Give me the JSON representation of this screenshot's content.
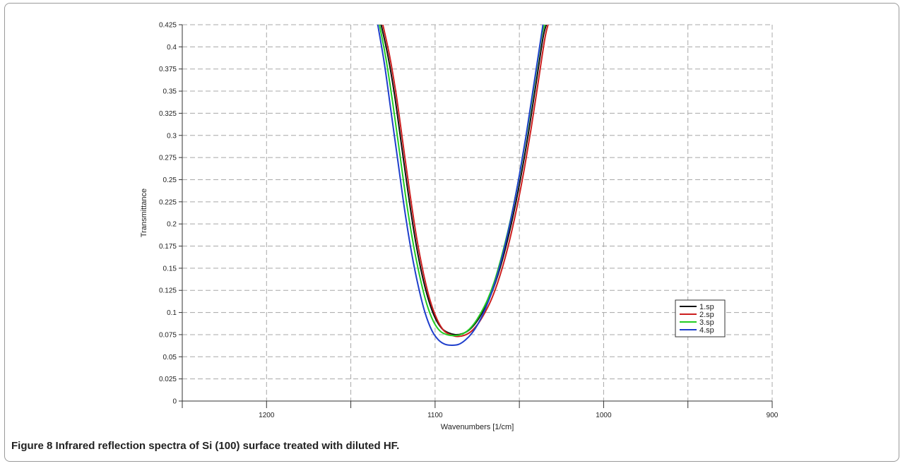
{
  "caption": {
    "label": "Figure 8",
    "text": "Infrared reflection spectra of Si (100) surface treated with diluted HF."
  },
  "chart_data": {
    "type": "line",
    "xlabel": "Wavenumbers [1/cm]",
    "ylabel": "Transmittance",
    "xlim": [
      1250,
      900
    ],
    "ylim": [
      0,
      0.425
    ],
    "x_ticks": [
      1200,
      1100,
      1000,
      900
    ],
    "x_minor_ticks": [
      1150,
      1050,
      950
    ],
    "y_ticks": [
      0,
      0.025,
      0.05,
      0.075,
      0.1,
      0.125,
      0.15,
      0.175,
      0.2,
      0.225,
      0.25,
      0.275,
      0.3,
      0.325,
      0.35,
      0.375,
      0.4,
      0.425
    ],
    "y_tick_labels": [
      "0",
      "0.025",
      "0.05",
      "0.075",
      "0.1",
      "0.125",
      "0.15",
      "0.175",
      "0.2",
      "0.225",
      "0.25",
      "0.275",
      "0.3",
      "0.325",
      "0.35",
      "0.375",
      "0.4",
      "0.425"
    ],
    "x_tick_labels": [
      "1200",
      "1100",
      "1000",
      "900"
    ],
    "grid": true,
    "legend_position": "right",
    "series": [
      {
        "name": "1.sp",
        "color": "#111111",
        "x": [
          1132,
          1128,
          1124,
          1120,
          1116,
          1112,
          1108,
          1104,
          1100,
          1096,
          1092,
          1088,
          1084,
          1080,
          1076,
          1072,
          1068,
          1064,
          1060,
          1056,
          1052,
          1048,
          1044,
          1040,
          1036,
          1034
        ],
        "y": [
          0.425,
          0.39,
          0.345,
          0.29,
          0.235,
          0.185,
          0.145,
          0.115,
          0.094,
          0.082,
          0.077,
          0.075,
          0.076,
          0.08,
          0.088,
          0.1,
          0.115,
          0.135,
          0.16,
          0.19,
          0.225,
          0.265,
          0.31,
          0.36,
          0.41,
          0.425
        ]
      },
      {
        "name": "2.sp",
        "color": "#cc1f1f",
        "x": [
          1131,
          1127,
          1123,
          1119,
          1115,
          1111,
          1107,
          1103,
          1099,
          1095,
          1091,
          1087,
          1083,
          1079,
          1075,
          1071,
          1067,
          1063,
          1059,
          1055,
          1051,
          1047,
          1043,
          1039,
          1035,
          1033
        ],
        "y": [
          0.425,
          0.39,
          0.345,
          0.29,
          0.235,
          0.185,
          0.145,
          0.114,
          0.093,
          0.08,
          0.075,
          0.073,
          0.074,
          0.078,
          0.086,
          0.098,
          0.113,
          0.133,
          0.158,
          0.188,
          0.223,
          0.263,
          0.308,
          0.358,
          0.408,
          0.425
        ]
      },
      {
        "name": "3.sp",
        "color": "#22cc22",
        "x": [
          1133,
          1129,
          1125,
          1121,
          1117,
          1113,
          1109,
          1105,
          1101,
          1097,
          1093,
          1089,
          1085,
          1081,
          1077,
          1073,
          1069,
          1065,
          1061,
          1057,
          1053,
          1049,
          1045,
          1041,
          1037,
          1035
        ],
        "y": [
          0.425,
          0.385,
          0.335,
          0.28,
          0.225,
          0.178,
          0.14,
          0.11,
          0.09,
          0.079,
          0.075,
          0.074,
          0.075,
          0.079,
          0.087,
          0.099,
          0.114,
          0.134,
          0.16,
          0.19,
          0.225,
          0.265,
          0.31,
          0.36,
          0.41,
          0.425
        ]
      },
      {
        "name": "4.sp",
        "color": "#1f3fcc",
        "x": [
          1134,
          1130,
          1126,
          1122,
          1118,
          1114,
          1110,
          1106,
          1102,
          1098,
          1094,
          1090,
          1086,
          1082,
          1078,
          1074,
          1070,
          1066,
          1062,
          1058,
          1054,
          1050,
          1046,
          1042,
          1038,
          1036
        ],
        "y": [
          0.425,
          0.38,
          0.325,
          0.27,
          0.215,
          0.168,
          0.13,
          0.1,
          0.08,
          0.069,
          0.064,
          0.063,
          0.064,
          0.069,
          0.077,
          0.089,
          0.105,
          0.125,
          0.15,
          0.18,
          0.215,
          0.255,
          0.3,
          0.35,
          0.4,
          0.425
        ]
      }
    ]
  }
}
